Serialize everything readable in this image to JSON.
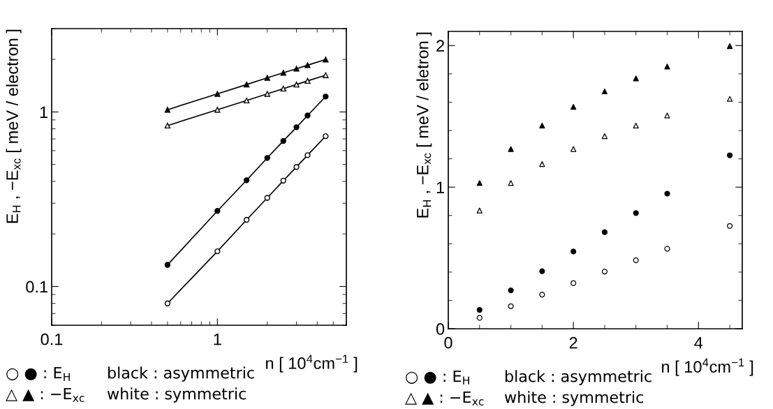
{
  "chart_data": [
    {
      "type": "line",
      "xlabel": "n [ 10$^{4}$cm$^{−1}$ ]",
      "ylabel": "E$_{H}$ , −E$_{xc}$ [ meV / electron ]",
      "log": "xy",
      "xlim": [
        0.1,
        6
      ],
      "ylim": [
        0.06,
        3
      ],
      "xticks": [
        0.1,
        1
      ],
      "yticks": [
        0.1,
        1
      ],
      "grid": false,
      "legend": false,
      "annotations": [
        "○ ● : E$_{H}$",
        "black : asymmetric",
        "△ ▲ : −E$_{xc}$",
        "white : symmetric"
      ],
      "x": [
        0.5,
        1.0,
        1.5,
        2.0,
        2.5,
        3.0,
        3.5,
        4.5
      ],
      "series": [
        {
          "color": "#000000",
          "marker": "triangle",
          "values": [
            1.029,
            1.269,
            1.435,
            1.567,
            1.676,
            1.768,
            1.852,
            1.996
          ]
        },
        {
          "color": "#ffffff",
          "marker": "triangle",
          "values": [
            0.835,
            1.029,
            1.163,
            1.269,
            1.36,
            1.435,
            1.506,
            1.623
          ]
        },
        {
          "color": "#000000",
          "marker": "circle",
          "values": [
            0.133,
            0.271,
            0.406,
            0.545,
            0.682,
            0.817,
            0.954,
            1.225
          ]
        },
        {
          "color": "#ffffff",
          "marker": "circle",
          "values": [
            0.08,
            0.159,
            0.241,
            0.322,
            0.404,
            0.484,
            0.565,
            0.726
          ]
        }
      ]
    },
    {
      "type": "scatter",
      "xlabel": "n [ 10$^{4}$cm$^{−1}$ ]",
      "ylabel": "E$_{H}$ , −E$_{xc}$ [ meV / eletron ]",
      "xlim": [
        0,
        4.7
      ],
      "ylim": [
        0,
        2.1
      ],
      "xticks": [
        0,
        2,
        4
      ],
      "yticks": [
        0,
        1,
        2
      ],
      "grid": false,
      "legend": false,
      "annotations": [
        "○ ● : E$_{H}$",
        "black : asymmetric",
        "△ ▲ : −E$_{xc}$",
        "white : symmetric"
      ],
      "x": [
        0.5,
        1.0,
        1.5,
        2.0,
        2.5,
        3.0,
        3.5,
        4.5
      ],
      "series": [
        {
          "color": "#000000",
          "marker": "triangle",
          "values": [
            1.029,
            1.269,
            1.435,
            1.567,
            1.676,
            1.768,
            1.852,
            1.996
          ]
        },
        {
          "color": "#ffffff",
          "marker": "triangle",
          "values": [
            0.835,
            1.029,
            1.163,
            1.269,
            1.36,
            1.435,
            1.506,
            1.623
          ]
        },
        {
          "color": "#000000",
          "marker": "circle",
          "values": [
            0.133,
            0.271,
            0.406,
            0.545,
            0.682,
            0.817,
            0.954,
            1.225
          ]
        },
        {
          "color": "#ffffff",
          "marker": "circle",
          "values": [
            0.077,
            0.159,
            0.241,
            0.322,
            0.404,
            0.484,
            0.565,
            0.726
          ]
        }
      ]
    }
  ]
}
